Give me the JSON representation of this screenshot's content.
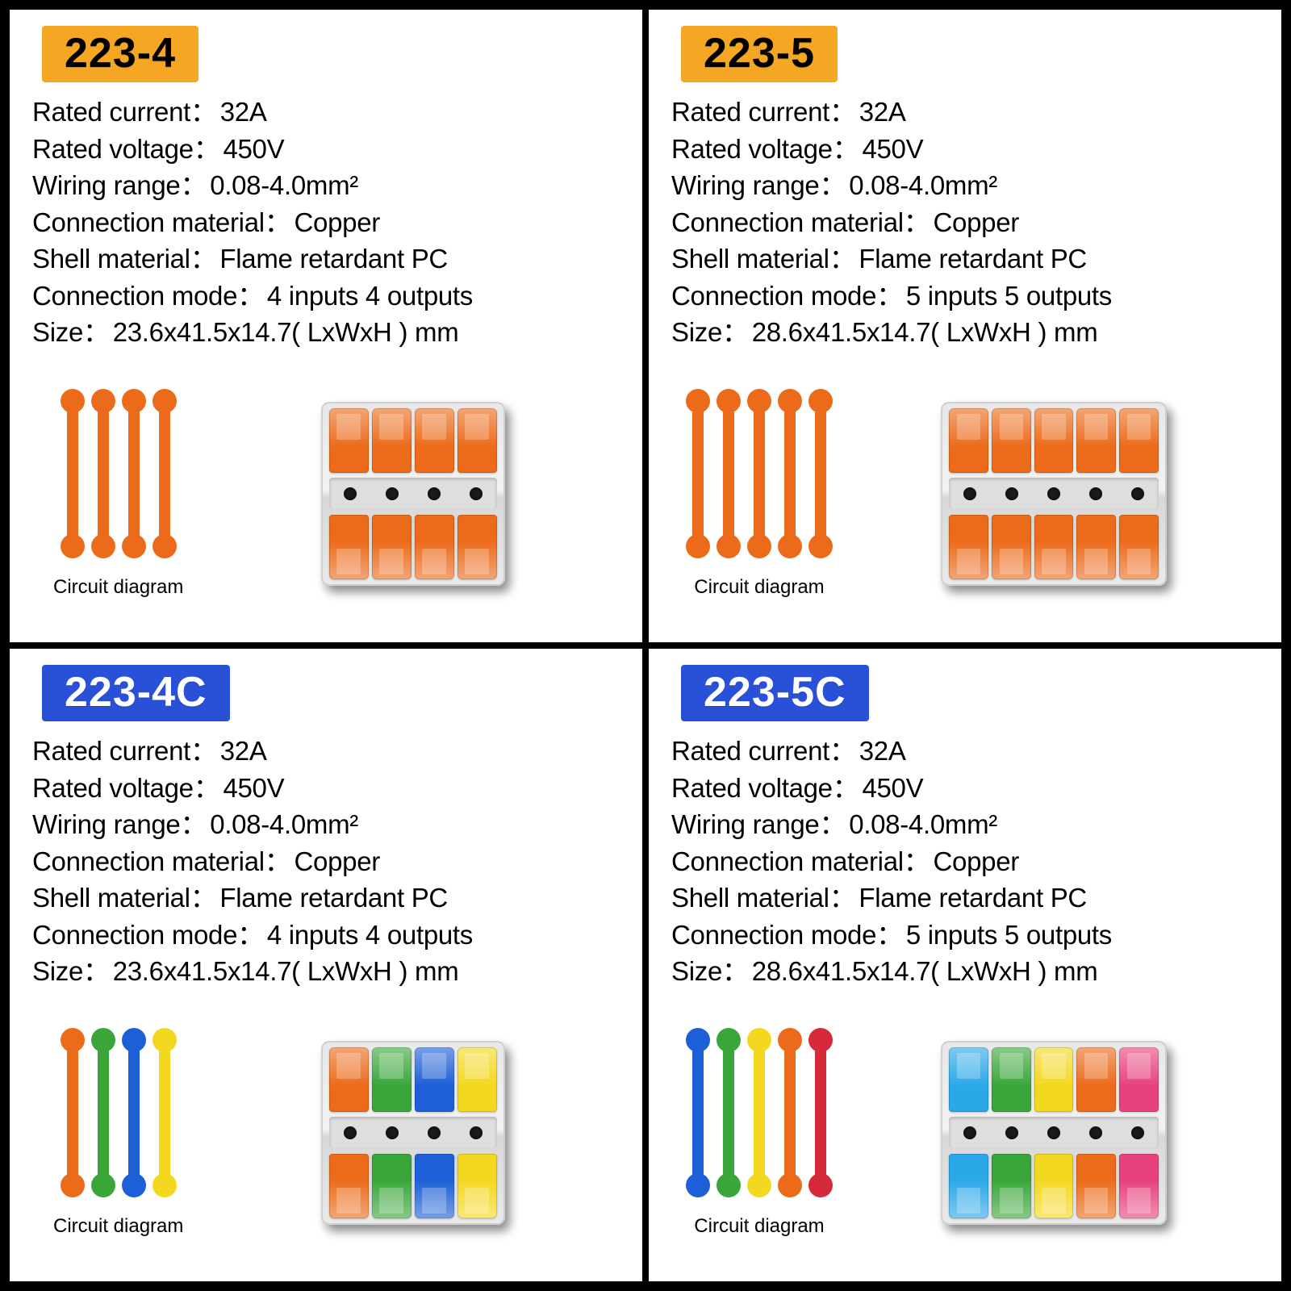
{
  "labels": {
    "rated_current": "Rated current",
    "rated_voltage": "Rated voltage",
    "wiring_range": "Wiring range",
    "connection_material": "Connection material",
    "shell_material": "Shell material",
    "connection_mode": "Connection mode",
    "size": "Size",
    "circuit_diagram": "Circuit diagram"
  },
  "colors": {
    "badge_orange": "#f5a623",
    "badge_blue": "#2851d8",
    "orange": "#ec6b1a",
    "green": "#3aa63a",
    "blue": "#1d5fd6",
    "yellow": "#f4d81f",
    "red": "#d62a3a",
    "lightblue": "#2aa8e8",
    "pink": "#e8427e"
  },
  "products": [
    {
      "model": "223-4",
      "badge_style": "orange",
      "specs": {
        "rated_current": "32A",
        "rated_voltage": "450V",
        "wiring_range": "0.08-4.0mm²",
        "connection_material": "Copper",
        "shell_material": "Flame retardant PC",
        "connection_mode": "4 inputs 4 outputs",
        "size": "23.6x41.5x14.7( LxWxH ) mm"
      },
      "diagram": {
        "count": 4,
        "stick_colors": [
          "#ec6b1a",
          "#ec6b1a",
          "#ec6b1a",
          "#ec6b1a"
        ]
      },
      "connector": {
        "ports": 4,
        "top_colors": [
          "#ec6b1a",
          "#ec6b1a",
          "#ec6b1a",
          "#ec6b1a"
        ],
        "bottom_colors": [
          "#ec6b1a",
          "#ec6b1a",
          "#ec6b1a",
          "#ec6b1a"
        ]
      }
    },
    {
      "model": "223-5",
      "badge_style": "orange",
      "specs": {
        "rated_current": "32A",
        "rated_voltage": "450V",
        "wiring_range": "0.08-4.0mm²",
        "connection_material": "Copper",
        "shell_material": "Flame retardant PC",
        "connection_mode": "5 inputs 5 outputs",
        "size": "28.6x41.5x14.7( LxWxH ) mm"
      },
      "diagram": {
        "count": 5,
        "stick_colors": [
          "#ec6b1a",
          "#ec6b1a",
          "#ec6b1a",
          "#ec6b1a",
          "#ec6b1a"
        ]
      },
      "connector": {
        "ports": 5,
        "top_colors": [
          "#ec6b1a",
          "#ec6b1a",
          "#ec6b1a",
          "#ec6b1a",
          "#ec6b1a"
        ],
        "bottom_colors": [
          "#ec6b1a",
          "#ec6b1a",
          "#ec6b1a",
          "#ec6b1a",
          "#ec6b1a"
        ]
      }
    },
    {
      "model": "223-4C",
      "badge_style": "blue",
      "specs": {
        "rated_current": "32A",
        "rated_voltage": "450V",
        "wiring_range": "0.08-4.0mm²",
        "connection_material": "Copper",
        "shell_material": "Flame retardant PC",
        "connection_mode": "4 inputs 4 outputs",
        "size": "23.6x41.5x14.7( LxWxH ) mm"
      },
      "diagram": {
        "count": 4,
        "stick_colors": [
          "#ec6b1a",
          "#3aa63a",
          "#1d5fd6",
          "#f4d81f"
        ]
      },
      "connector": {
        "ports": 4,
        "top_colors": [
          "#ec6b1a",
          "#3aa63a",
          "#1d5fd6",
          "#f4d81f"
        ],
        "bottom_colors": [
          "#ec6b1a",
          "#3aa63a",
          "#1d5fd6",
          "#f4d81f"
        ]
      }
    },
    {
      "model": "223-5C",
      "badge_style": "blue",
      "specs": {
        "rated_current": "32A",
        "rated_voltage": "450V",
        "wiring_range": "0.08-4.0mm²",
        "connection_material": "Copper",
        "shell_material": "Flame retardant PC",
        "connection_mode": "5 inputs 5 outputs",
        "size": "28.6x41.5x14.7( LxWxH ) mm"
      },
      "diagram": {
        "count": 5,
        "stick_colors": [
          "#1d5fd6",
          "#3aa63a",
          "#f4d81f",
          "#ec6b1a",
          "#d62a3a"
        ]
      },
      "connector": {
        "ports": 5,
        "top_colors": [
          "#2aa8e8",
          "#3aa63a",
          "#f4d81f",
          "#ec6b1a",
          "#e8427e"
        ],
        "bottom_colors": [
          "#2aa8e8",
          "#3aa63a",
          "#f4d81f",
          "#ec6b1a",
          "#e8427e"
        ]
      }
    }
  ]
}
